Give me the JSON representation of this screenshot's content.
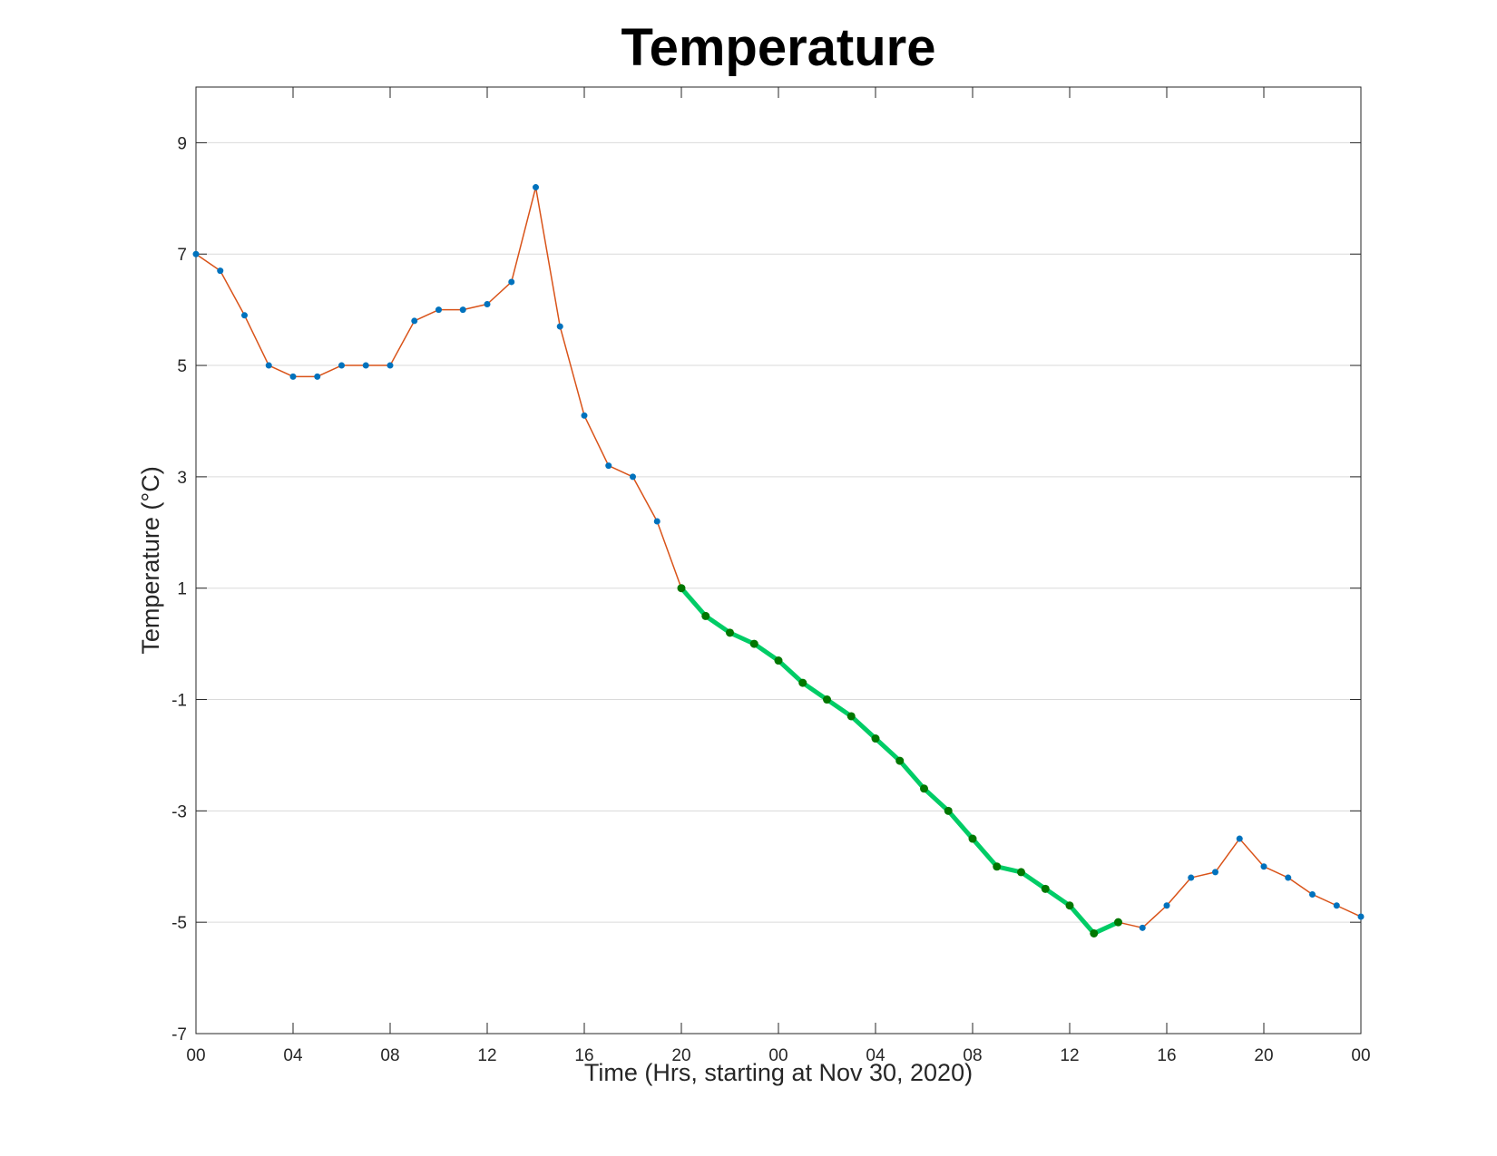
{
  "chart_data": {
    "type": "line",
    "title": "Temperature",
    "xlabel": "Time (Hrs, starting at Nov 30, 2020)",
    "ylabel": "Temperature (°C)",
    "ylim": [
      -7,
      10
    ],
    "y_ticks": [
      "9",
      "7",
      "5",
      "3",
      "1",
      "-1",
      "-3",
      "-5",
      "-7"
    ],
    "x_range_hours": [
      0,
      48
    ],
    "x_ticks": [
      "00",
      "04",
      "08",
      "12",
      "16",
      "20",
      "00",
      "04",
      "08",
      "12",
      "16",
      "20",
      "00"
    ],
    "grid": "horizontal",
    "colors": {
      "line": "#D95319",
      "marker": "#0072BD",
      "highlight_line": "#00CC66",
      "highlight_marker": "#007700",
      "grid": "#DADADA",
      "axes": "#262626"
    },
    "series": [
      {
        "x": [
          0,
          1,
          2,
          3,
          4,
          5,
          6,
          7,
          8,
          9,
          10,
          11,
          12,
          13,
          14,
          15,
          16,
          17,
          18,
          19,
          20,
          21,
          22,
          23,
          24,
          25,
          26,
          27,
          28,
          29,
          30,
          31,
          32,
          33,
          34,
          35,
          36,
          37,
          38,
          39,
          40,
          41,
          42,
          43,
          44,
          45,
          46,
          47,
          48
        ],
        "values": [
          7.0,
          6.7,
          5.9,
          5.0,
          4.8,
          4.8,
          5.0,
          5.0,
          5.0,
          5.8,
          6.0,
          6.0,
          6.1,
          6.5,
          8.2,
          5.7,
          4.1,
          3.2,
          3.0,
          2.2,
          1.0,
          0.5,
          0.2,
          0.0,
          -0.3,
          -0.7,
          -1.0,
          -1.3,
          -1.7,
          -2.1,
          -2.6,
          -3.0,
          -3.5,
          -4.0,
          -4.1,
          -4.4,
          -4.7,
          -5.2,
          -5.0,
          -5.1,
          -4.7,
          -4.2,
          -4.1,
          -3.5,
          -4.0,
          -4.2,
          -4.5,
          -4.7,
          -4.9
        ]
      }
    ],
    "highlight_range_hours": [
      20,
      38
    ]
  }
}
